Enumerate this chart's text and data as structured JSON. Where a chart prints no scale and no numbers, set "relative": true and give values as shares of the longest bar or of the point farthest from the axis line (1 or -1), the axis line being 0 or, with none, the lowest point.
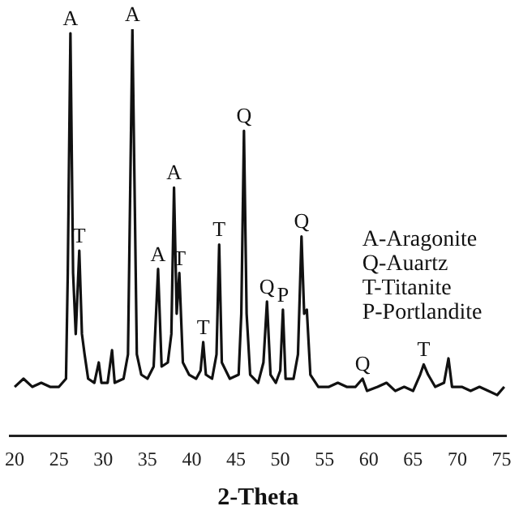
{
  "chart_data": {
    "type": "line",
    "xlabel": "2-Theta",
    "relative": true,
    "xlim": [
      19.5,
      75.5
    ],
    "xticks": [
      20,
      25,
      30,
      35,
      40,
      45,
      50,
      55,
      60,
      65,
      70,
      75
    ],
    "grid": false,
    "x": [
      20,
      21,
      22,
      23,
      24,
      25,
      25.8,
      26.0,
      26.3,
      26.6,
      26.9,
      27.3,
      27.6,
      27.9,
      28.3,
      29.0,
      29.5,
      29.8,
      30.5,
      31.0,
      31.3,
      32.3,
      32.8,
      33.3,
      33.8,
      34.3,
      35.0,
      35.7,
      36.2,
      36.6,
      37.3,
      37.7,
      38.0,
      38.3,
      38.6,
      39.0,
      39.7,
      40.5,
      41.0,
      41.3,
      41.6,
      42.3,
      42.8,
      43.1,
      43.4,
      44.3,
      45.3,
      45.6,
      45.9,
      46.2,
      46.6,
      47.5,
      48.1,
      48.5,
      48.9,
      49.5,
      50.0,
      50.3,
      50.6,
      51.5,
      52.0,
      52.4,
      52.7,
      53.0,
      53.4,
      54.3,
      55.5,
      56.5,
      57.5,
      58.5,
      59.3,
      59.8,
      61,
      62,
      63,
      64,
      65,
      65.8,
      66.2,
      66.7,
      67.5,
      68.5,
      69.0,
      69.4,
      70.5,
      71.5,
      72.5,
      73.5,
      74.5,
      75.3
    ],
    "series": [
      {
        "color": "#111111",
        "values": [
          0.12,
          0.14,
          0.12,
          0.13,
          0.12,
          0.12,
          0.14,
          0.4,
          0.99,
          0.4,
          0.25,
          0.455,
          0.25,
          0.2,
          0.14,
          0.13,
          0.18,
          0.13,
          0.13,
          0.21,
          0.13,
          0.14,
          0.2,
          1.0,
          0.2,
          0.15,
          0.14,
          0.17,
          0.41,
          0.17,
          0.18,
          0.25,
          0.61,
          0.3,
          0.4,
          0.18,
          0.15,
          0.14,
          0.16,
          0.23,
          0.15,
          0.14,
          0.2,
          0.47,
          0.18,
          0.14,
          0.15,
          0.3,
          0.75,
          0.3,
          0.15,
          0.13,
          0.18,
          0.33,
          0.15,
          0.13,
          0.16,
          0.31,
          0.14,
          0.14,
          0.2,
          0.49,
          0.3,
          0.31,
          0.15,
          0.12,
          0.12,
          0.13,
          0.12,
          0.12,
          0.14,
          0.11,
          0.12,
          0.13,
          0.11,
          0.12,
          0.11,
          0.15,
          0.175,
          0.15,
          0.12,
          0.13,
          0.19,
          0.12,
          0.12,
          0.11,
          0.12,
          0.11,
          0.1,
          0.12
        ]
      }
    ],
    "annotations": [
      {
        "text": "A",
        "x": 26.3,
        "y": 0.99
      },
      {
        "text": "T",
        "x": 27.3,
        "y": 0.455
      },
      {
        "text": "A",
        "x": 33.3,
        "y": 1.0
      },
      {
        "text": "A",
        "x": 36.2,
        "y": 0.41
      },
      {
        "text": "A",
        "x": 38.0,
        "y": 0.61
      },
      {
        "text": "T",
        "x": 38.6,
        "y": 0.4
      },
      {
        "text": "T",
        "x": 41.3,
        "y": 0.23
      },
      {
        "text": "T",
        "x": 43.1,
        "y": 0.47
      },
      {
        "text": "Q",
        "x": 45.9,
        "y": 0.75
      },
      {
        "text": "Q",
        "x": 48.5,
        "y": 0.33
      },
      {
        "text": "P",
        "x": 50.3,
        "y": 0.31
      },
      {
        "text": "Q",
        "x": 52.4,
        "y": 0.49
      },
      {
        "text": "Q",
        "x": 59.3,
        "y": 0.14
      },
      {
        "text": "T",
        "x": 66.2,
        "y": 0.175
      },
      "A-Aragonite",
      "Q-Auartz",
      "T-Titanite",
      "P-Portlandite"
    ]
  }
}
